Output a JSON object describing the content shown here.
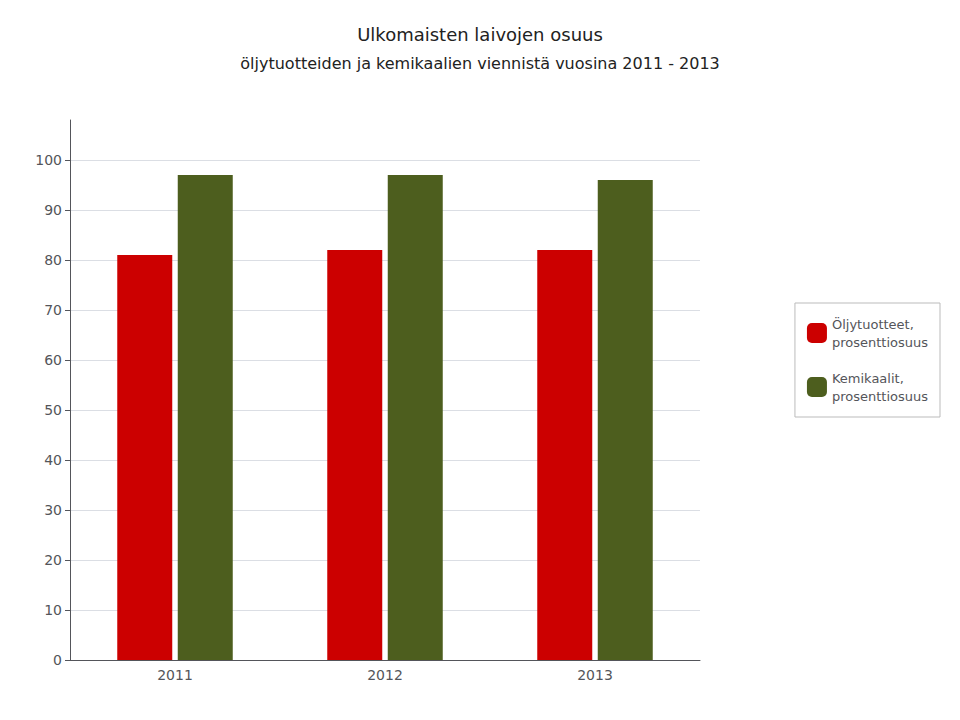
{
  "chart_data": {
    "type": "bar",
    "title": "Ulkomaisten laivojen osuus",
    "subtitle": "öljytuotteiden ja kemikaalien viennistä vuosina 2011 - 2013",
    "categories": [
      "2011",
      "2012",
      "2013"
    ],
    "series": [
      {
        "name": "Öljytuotteet,\nprosenttiosuus",
        "color": "#CC0000",
        "values": [
          81,
          82,
          82
        ]
      },
      {
        "name": "Kemikaalit,\nprosenttiosuus",
        "color": "#4D5E1E",
        "values": [
          97,
          97,
          96
        ]
      }
    ],
    "ylim": [
      0,
      108
    ],
    "yticks": [
      0,
      10,
      20,
      30,
      40,
      50,
      60,
      70,
      80,
      90,
      100
    ],
    "grid": true,
    "legend": "right"
  }
}
